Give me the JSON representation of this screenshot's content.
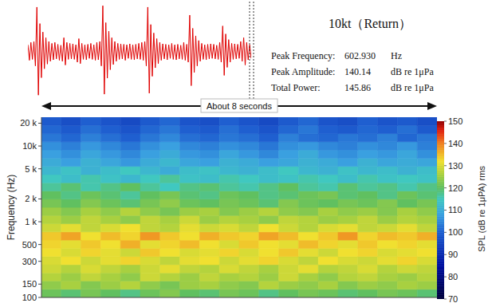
{
  "chart_data": [
    {
      "type": "line",
      "title": "10kt（Return）",
      "annotations": [
        {
          "label": "Peak Frequency:",
          "value": "602.930",
          "unit": "Hz"
        },
        {
          "label": "Peak Amplitude:",
          "value": "140.14",
          "unit": "dB re 1μPa"
        },
        {
          "label": "Total Power:",
          "value": "145.86",
          "unit": "dB re 1μPa"
        }
      ],
      "color": "#e00000",
      "ylim": [
        -1,
        1
      ],
      "tick_labels": false,
      "values": [
        0.15,
        -0.18,
        0.2,
        -0.16,
        0.22,
        -0.3,
        0.95,
        -0.92,
        0.6,
        -0.55,
        0.42,
        -0.36,
        0.3,
        -0.26,
        0.22,
        -0.2,
        0.18,
        -0.17,
        0.2,
        -0.15,
        0.16,
        -0.18,
        0.14,
        -0.2,
        0.3,
        -0.28,
        0.2,
        -0.16,
        0.18,
        -0.15,
        0.17,
        -0.16,
        0.15,
        -0.22,
        0.28,
        -0.25,
        0.18,
        -0.16,
        0.15,
        -0.17,
        0.16,
        -0.14,
        0.18,
        -0.16,
        0.15,
        -0.18,
        0.2,
        -0.17,
        0.22,
        -0.3,
        0.98,
        -0.9,
        0.62,
        -0.56,
        0.44,
        -0.38,
        0.3,
        -0.27,
        0.22,
        -0.2,
        0.18,
        -0.16,
        0.17,
        -0.15,
        0.16,
        -0.18,
        0.15,
        -0.14,
        0.17,
        -0.16,
        0.15,
        -0.17,
        0.16,
        -0.15,
        0.18,
        -0.16,
        0.2,
        -0.18,
        0.22,
        -0.3,
        0.95,
        -0.88,
        0.58,
        -0.52,
        0.4,
        -0.34,
        0.28,
        -0.25,
        0.2,
        -0.18,
        0.17,
        -0.15,
        0.16,
        -0.17,
        0.15,
        -0.14,
        0.18,
        -0.16,
        0.15,
        -0.17,
        0.16,
        -0.15,
        0.14,
        -0.16,
        0.2,
        -0.18,
        0.16,
        -0.22,
        0.78,
        -0.72,
        0.5,
        -0.44,
        0.34,
        -0.3,
        0.24,
        -0.2,
        0.18,
        -0.16,
        0.15,
        -0.17,
        0.16,
        -0.15,
        0.17,
        -0.14,
        0.16,
        -0.15,
        0.14,
        -0.16,
        0.2,
        -0.22,
        0.55,
        -0.5,
        0.38,
        -0.33,
        0.26,
        -0.22,
        0.18,
        -0.16,
        0.17,
        -0.15,
        0.16,
        -0.14,
        0.22,
        -0.2,
        0.3,
        -0.28,
        0.2,
        -0.17,
        0.15,
        -0.14
      ]
    },
    {
      "type": "heatmap",
      "ylabel": "Frequency (Hz)",
      "log": "y",
      "xlim": [
        0,
        8
      ],
      "ylim": [
        100,
        24000
      ],
      "yticks": [
        100,
        150,
        300,
        500,
        {
          "value": 1000,
          "label": "1 k"
        },
        {
          "value": 2000,
          "label": "2 k"
        },
        {
          "value": 5000,
          "label": "5 k"
        },
        {
          "value": 10000,
          "label": "10k"
        },
        {
          "value": 20000,
          "label": "20 k"
        }
      ],
      "tick_labels": "y",
      "annotations": [
        "About 8 seconds"
      ],
      "x_edges": [
        0,
        0.4,
        0.8,
        1.2,
        1.6,
        2,
        2.4,
        2.8,
        3.2,
        3.6,
        4,
        4.4,
        4.8,
        5.2,
        5.6,
        6,
        6.4,
        6.8,
        7.2,
        7.6,
        8
      ],
      "y_edges": [
        100,
        128,
        165,
        211,
        271,
        348,
        446,
        572,
        734,
        941,
        1208,
        1549,
        1988,
        2550,
        3272,
        4197,
        5385,
        6908,
        8862,
        11369,
        14586,
        18712,
        24000
      ],
      "cells": [
        [
          121,
          119,
          122,
          120,
          118,
          121,
          123,
          120,
          119,
          122,
          121,
          118,
          120,
          122,
          121,
          119,
          120,
          122,
          121,
          119
        ],
        [
          124,
          126,
          123,
          125,
          127,
          124,
          122,
          125,
          126,
          124,
          123,
          127,
          125,
          124,
          126,
          123,
          125,
          124,
          126,
          125
        ],
        [
          127,
          125,
          128,
          126,
          124,
          129,
          127,
          125,
          128,
          126,
          127,
          125,
          129,
          126,
          124,
          127,
          128,
          126,
          125,
          127
        ],
        [
          129,
          127,
          130,
          128,
          126,
          129,
          131,
          128,
          127,
          130,
          128,
          126,
          129,
          131,
          127,
          128,
          130,
          127,
          129,
          128
        ],
        [
          130,
          132,
          129,
          131,
          133,
          130,
          128,
          131,
          132,
          129,
          131,
          133,
          130,
          128,
          132,
          130,
          129,
          131,
          133,
          130
        ],
        [
          132,
          130,
          133,
          131,
          129,
          134,
          132,
          130,
          131,
          133,
          130,
          132,
          134,
          131,
          129,
          132,
          133,
          130,
          131,
          132
        ],
        [
          133,
          131,
          134,
          132,
          136,
          131,
          133,
          135,
          132,
          130,
          134,
          132,
          131,
          135,
          133,
          131,
          134,
          132,
          133,
          131
        ],
        [
          134,
          137,
          132,
          135,
          133,
          138,
          134,
          132,
          136,
          134,
          133,
          137,
          135,
          132,
          134,
          138,
          133,
          135,
          134,
          136
        ],
        [
          129,
          131,
          128,
          130,
          132,
          128,
          127,
          131,
          129,
          130,
          128,
          132,
          129,
          127,
          130,
          131,
          128,
          129,
          131,
          128
        ],
        [
          127,
          125,
          128,
          126,
          124,
          128,
          126,
          129,
          125,
          127,
          126,
          124,
          128,
          127,
          125,
          126,
          128,
          125,
          127,
          126
        ],
        [
          125,
          123,
          126,
          124,
          127,
          124,
          122,
          125,
          126,
          123,
          125,
          127,
          124,
          123,
          126,
          124,
          125,
          123,
          126,
          124
        ],
        [
          122,
          120,
          123,
          121,
          119,
          122,
          124,
          121,
          120,
          122,
          121,
          119,
          123,
          121,
          120,
          122,
          121,
          123,
          120,
          122
        ],
        [
          120,
          118,
          121,
          119,
          117,
          120,
          122,
          119,
          118,
          121,
          120,
          118,
          119,
          121,
          122,
          119,
          120,
          118,
          121,
          119
        ],
        [
          117,
          119,
          116,
          118,
          120,
          117,
          115,
          118,
          119,
          117,
          116,
          118,
          120,
          117,
          116,
          119,
          117,
          118,
          116,
          118
        ],
        [
          115,
          113,
          116,
          114,
          112,
          115,
          117,
          114,
          113,
          116,
          115,
          113,
          114,
          116,
          115,
          113,
          116,
          114,
          115,
          114
        ],
        [
          112,
          114,
          111,
          113,
          115,
          112,
          110,
          113,
          114,
          112,
          111,
          113,
          115,
          112,
          111,
          114,
          112,
          113,
          111,
          113
        ],
        [
          110,
          108,
          111,
          109,
          107,
          110,
          112,
          109,
          108,
          111,
          110,
          108,
          109,
          111,
          110,
          108,
          111,
          109,
          110,
          109
        ],
        [
          108,
          106,
          109,
          107,
          105,
          108,
          110,
          107,
          106,
          109,
          107,
          105,
          108,
          110,
          107,
          106,
          108,
          107,
          109,
          106
        ],
        [
          106,
          104,
          107,
          105,
          103,
          106,
          108,
          105,
          104,
          106,
          105,
          103,
          106,
          107,
          105,
          104,
          106,
          105,
          107,
          104
        ],
        [
          103,
          101,
          104,
          102,
          100,
          103,
          105,
          102,
          101,
          103,
          102,
          100,
          104,
          102,
          101,
          103,
          102,
          104,
          101,
          103
        ],
        [
          101,
          99,
          102,
          100,
          98,
          101,
          103,
          100,
          99,
          102,
          100,
          98,
          101,
          103,
          100,
          99,
          101,
          100,
          102,
          99
        ],
        [
          99,
          97,
          100,
          98,
          96,
          99,
          101,
          98,
          97,
          100,
          98,
          96,
          99,
          101,
          98,
          97,
          100,
          98,
          99,
          97
        ]
      ],
      "colorbar": {
        "label": "SPL (dB re 1μPA) rms",
        "range": [
          70,
          150
        ],
        "ticks": [
          70,
          80,
          90,
          100,
          110,
          120,
          130,
          140,
          150
        ]
      }
    }
  ]
}
